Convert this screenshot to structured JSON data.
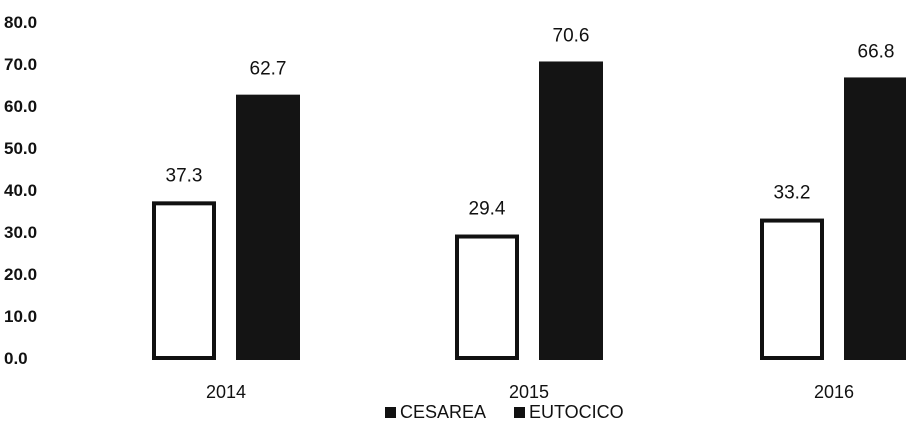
{
  "chart_data": {
    "type": "bar",
    "categories": [
      "2014",
      "2015",
      "2016"
    ],
    "series": [
      {
        "name": "CESAREA",
        "values": [
          37.3,
          29.4,
          33.2
        ],
        "labels": [
          "37.3",
          "29.4",
          "33.2"
        ],
        "color": "#ffffff",
        "stroke": "#111111"
      },
      {
        "name": "EUTOCICO",
        "values": [
          62.7,
          70.6,
          66.8
        ],
        "labels": [
          "62.7",
          "70.6",
          "66.8"
        ],
        "color": "#141414",
        "stroke": "#141414"
      }
    ],
    "yticks": [
      "0.0",
      "10.0",
      "20.0",
      "30.0",
      "40.0",
      "50.0",
      "60.0",
      "70.0",
      "80.0"
    ],
    "ylim": [
      0,
      80
    ],
    "grid": false,
    "legend": {
      "position": "bottom",
      "entries": [
        "CESAREA",
        "EUTOCICO"
      ],
      "marker_color": "#111111"
    },
    "title": "",
    "xlabel": "",
    "ylabel": ""
  }
}
